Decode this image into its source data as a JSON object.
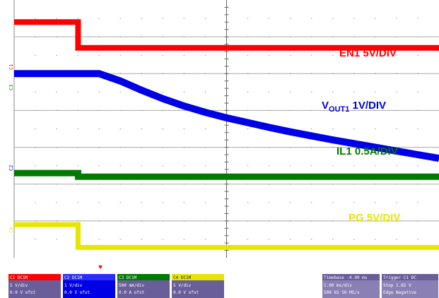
{
  "chart_data": {
    "type": "line",
    "x": [
      0,
      0.5,
      1,
      1.5,
      2,
      2.5,
      3,
      3.5,
      4,
      4.5,
      5,
      5.5,
      6,
      6.5,
      7,
      7.5,
      8,
      8.5,
      9,
      9.5,
      10
    ],
    "series": [
      {
        "name": "EN1",
        "scale": "5V/DIV",
        "color": "#ff0000",
        "values": [
          6.4,
          6.4,
          6.4,
          6.4,
          5.7,
          5.7,
          5.7,
          5.7,
          5.7,
          5.7,
          5.7,
          5.7,
          5.7,
          5.7,
          5.7,
          5.7,
          5.7,
          5.7,
          5.7,
          5.7,
          5.7
        ]
      },
      {
        "name": "VOUT1",
        "scale": "1V/DIV",
        "color": "#0000e6",
        "values": [
          5.0,
          5.0,
          5.0,
          5.0,
          5.0,
          4.8,
          4.55,
          4.32,
          4.12,
          3.95,
          3.8,
          3.67,
          3.54,
          3.42,
          3.31,
          3.2,
          3.1,
          3.0,
          2.9,
          2.8,
          2.7
        ]
      },
      {
        "name": "IL1",
        "scale": "0.5A/DIV",
        "color": "#007a00",
        "values": [
          2.3,
          2.3,
          2.3,
          2.3,
          2.2,
          2.2,
          2.2,
          2.2,
          2.2,
          2.2,
          2.2,
          2.2,
          2.2,
          2.2,
          2.2,
          2.2,
          2.2,
          2.2,
          2.2,
          2.2,
          2.2
        ]
      },
      {
        "name": "PG",
        "scale": "5V/DIV",
        "color": "#e6e600",
        "values": [
          0.9,
          0.9,
          0.9,
          0.9,
          0.28,
          0.28,
          0.28,
          0.28,
          0.28,
          0.28,
          0.28,
          0.28,
          0.28,
          0.28,
          0.28,
          0.28,
          0.28,
          0.28,
          0.28,
          0.28,
          0.28
        ]
      }
    ],
    "xlim": [
      0,
      10
    ],
    "ylim": [
      0,
      7
    ],
    "grid": true,
    "legend": "inline-right",
    "labels": {
      "en1": "EN1 5V/DIV",
      "vout_main": "V",
      "vout_sub": "OUT1",
      "vout_scale": " 1V/DIV",
      "il1": "IL1  0.5A/DIV",
      "pg": "PG 5V/DIV"
    }
  },
  "ui": {
    "colors": {
      "ch1": "#ff0000",
      "ch2": "#0000e6",
      "ch3": "#007a00",
      "ch4": "#e6e600",
      "panel": "#6a5e9a",
      "panel_light": "#8a80b4"
    },
    "channel_markers": [
      "C1",
      "C2",
      "C3",
      "C4"
    ],
    "footer_panels": [
      {
        "id": "ch1",
        "l1": "C1  DC1M",
        "l2": "5 V/div",
        "l3": "0.0 V ofst"
      },
      {
        "id": "ch2",
        "l1": "C2  DC1M",
        "l2": "1 V/div",
        "l3": "0.0 V ofst"
      },
      {
        "id": "ch3",
        "l1": "C3  DC1M",
        "l2": "500 mA/div",
        "l3": "0.0 A ofst"
      },
      {
        "id": "ch4",
        "l1": "C4  DC1M",
        "l2": "5 V/div",
        "l3": "0.0 V ofst"
      },
      {
        "id": "timebase",
        "l1": "Timebase  -4.00 ms",
        "l2": "1.00 ms/div",
        "l3": "500 kS  50 MS/s"
      },
      {
        "id": "trigger",
        "l1": "Trigger  C1 DC",
        "l2": "Stop  1.65 V",
        "l3": "Edge  Negative"
      }
    ]
  }
}
